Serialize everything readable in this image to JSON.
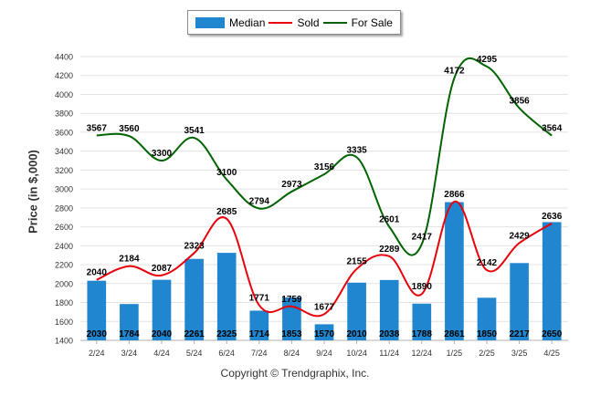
{
  "legend": {
    "median_label": "Median",
    "sold_label": "Sold",
    "forsale_label": "For Sale"
  },
  "footer": {
    "copyright": "Copyright © Trendgraphix, Inc."
  },
  "colors": {
    "median": "#1f86cf",
    "sold": "#e8000b",
    "forsale": "#006400"
  },
  "chart_data": {
    "type": "bar",
    "title": "",
    "xlabel": "",
    "ylabel": "Price (in $,000)",
    "ylim": [
      1400,
      4400
    ],
    "yticks": [
      1400,
      1600,
      1800,
      2000,
      2200,
      2400,
      2600,
      2800,
      3000,
      3200,
      3400,
      3600,
      3800,
      4000,
      4200,
      4400
    ],
    "grid": true,
    "legend_position": "top",
    "categories": [
      "2/24",
      "3/24",
      "4/24",
      "5/24",
      "6/24",
      "7/24",
      "8/24",
      "9/24",
      "10/24",
      "11/24",
      "12/24",
      "1/25",
      "2/25",
      "3/25",
      "4/25"
    ],
    "series": [
      {
        "name": "Median",
        "type": "bar",
        "values": [
          2030,
          1784,
          2040,
          2261,
          2325,
          1714,
          1853,
          1570,
          2010,
          2038,
          1788,
          2861,
          1850,
          2217,
          2650
        ]
      },
      {
        "name": "Sold",
        "type": "line",
        "values": [
          2040,
          2184,
          2087,
          2323,
          2685,
          1771,
          1759,
          1677,
          2155,
          2289,
          1890,
          2866,
          2142,
          2429,
          2636
        ]
      },
      {
        "name": "For Sale",
        "type": "line",
        "values": [
          3567,
          3560,
          3300,
          3541,
          3100,
          2794,
          2973,
          3156,
          3335,
          2601,
          2417,
          4172,
          4295,
          3856,
          3564
        ]
      }
    ]
  }
}
